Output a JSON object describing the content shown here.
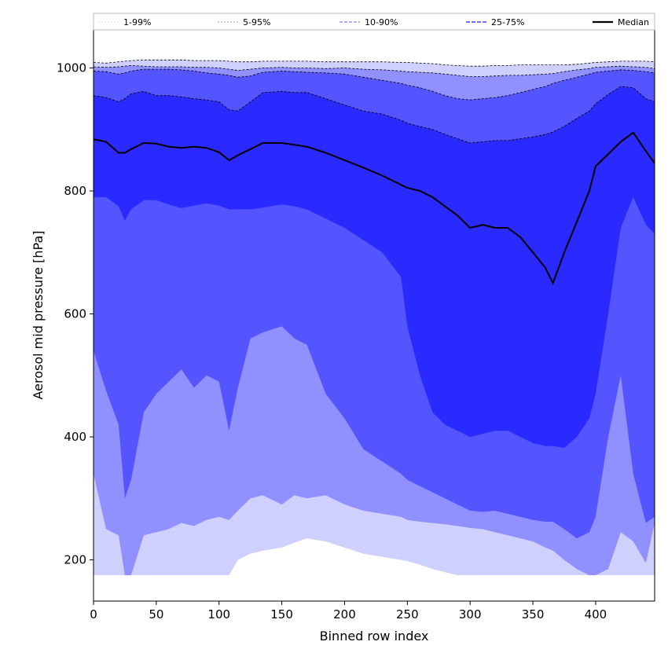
{
  "chart_data": {
    "type": "area",
    "title": "",
    "xlabel": "Binned row index",
    "ylabel": "Aerosol mid pressure [hPa]",
    "xlim": [
      0,
      447
    ],
    "ylim": [
      133,
      1062
    ],
    "xticks": [
      0,
      50,
      100,
      150,
      200,
      250,
      300,
      350,
      400
    ],
    "yticks": [
      200,
      400,
      600,
      800,
      1000
    ],
    "grid": false,
    "legend_position": "top",
    "colors": {
      "band_1_99": "#d0d0ff",
      "band_5_95": "#9090ff",
      "band_10_90": "#5555ff",
      "band_25_75": "#2a2aff",
      "median": "#000000"
    },
    "x": [
      0,
      10,
      20,
      25,
      30,
      40,
      50,
      60,
      70,
      80,
      90,
      100,
      108,
      115,
      125,
      135,
      150,
      160,
      170,
      185,
      200,
      215,
      230,
      245,
      250,
      260,
      270,
      280,
      290,
      300,
      310,
      320,
      330,
      340,
      350,
      360,
      366,
      375,
      385,
      395,
      400,
      410,
      420,
      430,
      440,
      447
    ],
    "series": [
      {
        "name": "1-99%",
        "band": "band_1_99",
        "upper": [
          1009,
          1008,
          1010,
          1011,
          1012,
          1013,
          1013,
          1013,
          1013,
          1012,
          1012,
          1012,
          1011,
          1010,
          1010,
          1011,
          1011,
          1011,
          1011,
          1010,
          1010,
          1010,
          1010,
          1009,
          1009,
          1008,
          1007,
          1005,
          1004,
          1003,
          1003,
          1004,
          1004,
          1005,
          1005,
          1005,
          1005,
          1005,
          1006,
          1008,
          1009,
          1010,
          1011,
          1011,
          1011,
          1010
        ],
        "lower": [
          175,
          175,
          175,
          175,
          175,
          175,
          175,
          175,
          175,
          175,
          175,
          175,
          175,
          200,
          210,
          215,
          220,
          228,
          235,
          230,
          220,
          210,
          205,
          200,
          198,
          192,
          185,
          180,
          175,
          175,
          175,
          175,
          175,
          175,
          175,
          175,
          175,
          175,
          175,
          175,
          175,
          175,
          175,
          175,
          175,
          175
        ]
      },
      {
        "name": "5-95%",
        "band": "band_5_95",
        "upper": [
          1002,
          1001,
          1002,
          1003,
          1004,
          1003,
          1002,
          1002,
          1002,
          1001,
          1001,
          1000,
          998,
          996,
          998,
          1000,
          1001,
          1000,
          1000,
          999,
          1000,
          998,
          997,
          995,
          994,
          993,
          992,
          990,
          988,
          986,
          986,
          987,
          988,
          988,
          989,
          990,
          991,
          994,
          997,
          999,
          1001,
          1002,
          1003,
          1002,
          1001,
          999
        ],
        "lower": [
          340,
          250,
          240,
          175,
          175,
          240,
          245,
          250,
          260,
          255,
          265,
          270,
          265,
          280,
          300,
          305,
          290,
          305,
          300,
          305,
          290,
          280,
          275,
          270,
          265,
          262,
          260,
          258,
          255,
          252,
          250,
          245,
          240,
          235,
          230,
          220,
          215,
          200,
          185,
          175,
          175,
          185,
          245,
          230,
          195,
          260
        ]
      },
      {
        "name": "10-90%",
        "band": "band_10_90",
        "upper": [
          995,
          994,
          990,
          992,
          995,
          998,
          998,
          998,
          997,
          995,
          992,
          990,
          988,
          985,
          987,
          993,
          995,
          994,
          993,
          992,
          990,
          985,
          980,
          975,
          972,
          968,
          962,
          955,
          950,
          948,
          950,
          952,
          955,
          960,
          965,
          970,
          975,
          980,
          985,
          990,
          993,
          995,
          997,
          996,
          994,
          992
        ],
        "lower": [
          540,
          475,
          420,
          300,
          330,
          440,
          470,
          490,
          510,
          480,
          500,
          490,
          410,
          480,
          560,
          570,
          580,
          560,
          550,
          470,
          430,
          380,
          360,
          340,
          330,
          320,
          310,
          300,
          290,
          280,
          278,
          280,
          275,
          270,
          265,
          262,
          262,
          250,
          235,
          245,
          270,
          400,
          500,
          340,
          260,
          270
        ]
      },
      {
        "name": "25-75%",
        "band": "band_25_75",
        "upper": [
          955,
          952,
          945,
          950,
          958,
          962,
          955,
          955,
          953,
          950,
          948,
          945,
          932,
          930,
          945,
          960,
          962,
          960,
          960,
          950,
          940,
          930,
          925,
          915,
          910,
          905,
          900,
          892,
          885,
          878,
          880,
          882,
          882,
          885,
          888,
          892,
          896,
          905,
          918,
          930,
          942,
          957,
          970,
          968,
          950,
          945
        ],
        "lower": [
          790,
          790,
          775,
          752,
          770,
          785,
          785,
          778,
          772,
          776,
          780,
          776,
          770,
          770,
          770,
          773,
          778,
          775,
          770,
          755,
          740,
          720,
          700,
          660,
          580,
          500,
          440,
          420,
          410,
          400,
          405,
          410,
          410,
          400,
          390,
          385,
          385,
          382,
          400,
          430,
          470,
          600,
          740,
          790,
          745,
          730
        ]
      },
      {
        "name": "Median",
        "band": "median",
        "values": [
          884,
          880,
          862,
          862,
          868,
          878,
          877,
          872,
          870,
          872,
          870,
          863,
          850,
          858,
          868,
          878,
          878,
          875,
          872,
          862,
          850,
          838,
          825,
          810,
          805,
          800,
          790,
          775,
          760,
          740,
          745,
          740,
          740,
          725,
          700,
          675,
          650,
          700,
          750,
          800,
          840,
          860,
          880,
          895,
          865,
          845
        ]
      }
    ]
  }
}
